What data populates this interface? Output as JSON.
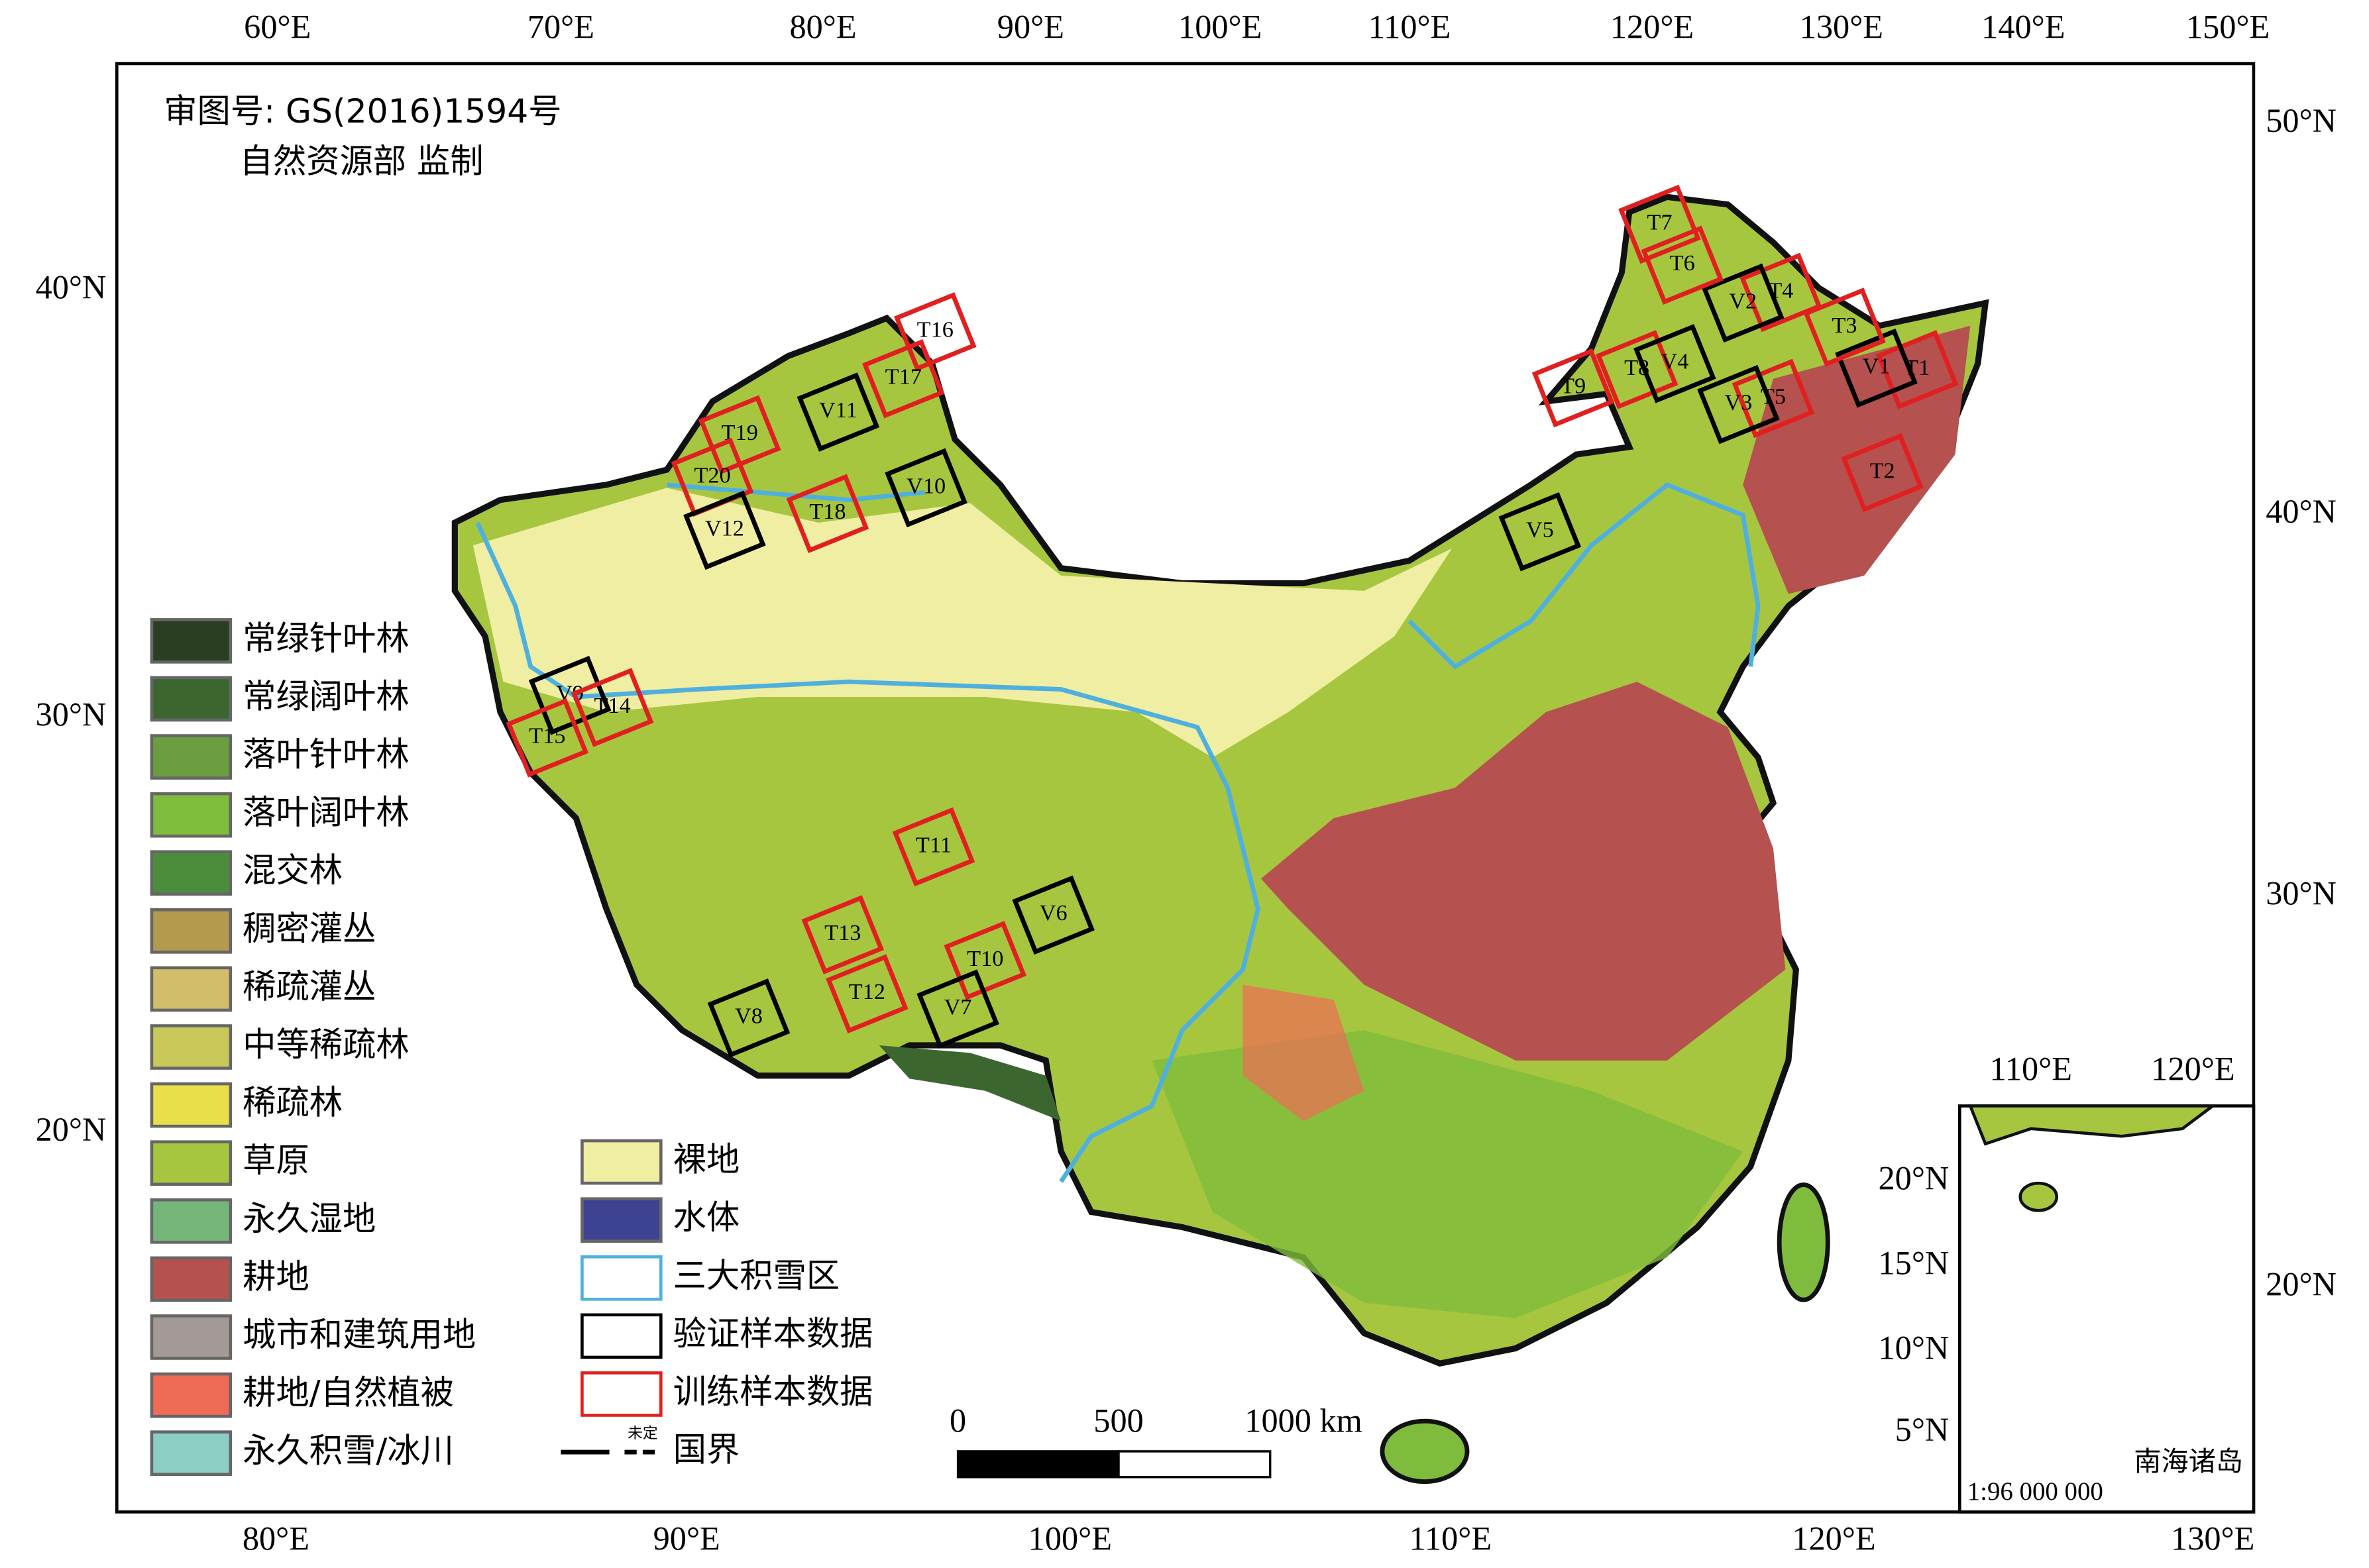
{
  "map": {
    "approval": [
      "审图号: GS(2016)1594号",
      "自然资源部 监制"
    ],
    "top_ticks": [
      "60°E",
      "70°E",
      "80°E",
      "90°E",
      "100°E",
      "110°E",
      "120°E",
      "130°E",
      "140°E",
      "150°E"
    ],
    "bottom_ticks": [
      "80°E",
      "90°E",
      "100°E",
      "110°E",
      "120°E",
      "130°E"
    ],
    "left_ticks": [
      "40°N",
      "30°N",
      "20°N"
    ],
    "right_ticks": [
      "50°N",
      "40°N",
      "30°N",
      "20°N"
    ],
    "legend": [
      {
        "label": "常绿针叶林",
        "color": "#2a3e22"
      },
      {
        "label": "常绿阔叶林",
        "color": "#3c6630"
      },
      {
        "label": "落叶针叶林",
        "color": "#6a9e3e"
      },
      {
        "label": "落叶阔叶林",
        "color": "#7fbb3c"
      },
      {
        "label": "混交林",
        "color": "#4b8d3a"
      },
      {
        "label": "稠密灌丛",
        "color": "#b39a4f"
      },
      {
        "label": "稀疏灌丛",
        "color": "#d2bd6a"
      },
      {
        "label": "中等稀疏林",
        "color": "#c9c95a"
      },
      {
        "label": "稀疏林",
        "color": "#e8e04a"
      },
      {
        "label": "草原",
        "color": "#a7c63f"
      },
      {
        "label": "永久湿地",
        "color": "#76b57a"
      },
      {
        "label": "耕地",
        "color": "#b5514e"
      },
      {
        "label": "城市和建筑用地",
        "color": "#a39a97"
      },
      {
        "label": "耕地/自然植被",
        "color": "#ef6b55"
      },
      {
        "label": "永久积雪/冰川",
        "color": "#8ccdc4"
      }
    ],
    "legend_right": [
      {
        "label": "裸地",
        "color": "#efeea3",
        "kind": "fill"
      },
      {
        "label": "水体",
        "color": "#3d4293",
        "kind": "fill"
      },
      {
        "label": "三大积雪区",
        "color": "#4fb0de",
        "kind": "outline"
      },
      {
        "label": "验证样本数据",
        "color": "#000000",
        "kind": "outline"
      },
      {
        "label": "训练样本数据",
        "color": "#e02020",
        "kind": "outline"
      },
      {
        "label": "国界",
        "color": "#000000",
        "kind": "line"
      }
    ],
    "undetermined": "未定",
    "scale_labels": [
      "0",
      "500",
      "1000 km"
    ],
    "samples": [
      "T1",
      "V1",
      "T2",
      "T3",
      "T4",
      "V2",
      "T5",
      "V3",
      "T6",
      "T7",
      "T8",
      "V4",
      "T9",
      "V5",
      "T16",
      "T17",
      "V11",
      "T19",
      "T20",
      "V10",
      "T18",
      "V12",
      "V9",
      "T14",
      "T15",
      "T11",
      "V6",
      "T13",
      "T10",
      "T12",
      "V7",
      "V8"
    ],
    "inset": {
      "top_ticks": [
        "110°E",
        "120°E"
      ],
      "left_ticks": [
        "20°N",
        "15°N",
        "10°N",
        "5°N"
      ],
      "label": "南海诸岛",
      "scale": "1:96 000 000"
    }
  }
}
